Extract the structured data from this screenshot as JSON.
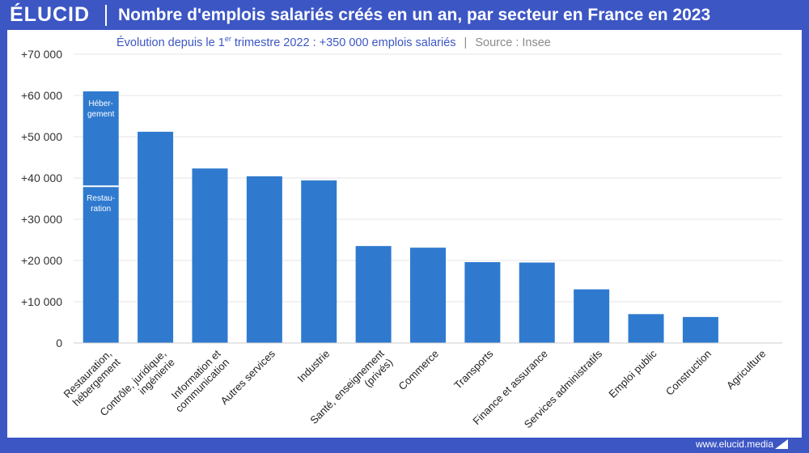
{
  "header": {
    "logo": "ÉLUCID",
    "title": "Nombre d'emplois salariés créés en un an, par secteur en France en 2023"
  },
  "subtitle": {
    "main_pre": "Évolution depuis le 1",
    "main_sup": "er",
    "main_post": " trimestre 2022 : +350 000 emplois salariés",
    "separator": "|",
    "source": "Source : Insee"
  },
  "footer": {
    "url": "www.elucid.media"
  },
  "colors": {
    "brand": "#3c56c4",
    "bar": "#2f7acf",
    "grid": "#e6e6e6"
  },
  "chart_data": {
    "type": "bar",
    "ylim": [
      0,
      70000
    ],
    "ticks": [
      {
        "value": 0,
        "label": "0"
      },
      {
        "value": 10000,
        "label": "+10 000"
      },
      {
        "value": 20000,
        "label": "+20 000"
      },
      {
        "value": 30000,
        "label": "+30 000"
      },
      {
        "value": 40000,
        "label": "+40 000"
      },
      {
        "value": 50000,
        "label": "+50 000"
      },
      {
        "value": 60000,
        "label": "+60 000"
      },
      {
        "value": 70000,
        "label": "+70 000"
      }
    ],
    "grid": true,
    "categories": [
      {
        "lines": [
          "Restauration,",
          "hébergement"
        ],
        "value": 61000,
        "segments": [
          {
            "label_lines": [
              "Restau-",
              "ration"
            ],
            "value": 38000
          },
          {
            "label_lines": [
              "Héber-",
              "gement"
            ],
            "value": 23000
          }
        ]
      },
      {
        "lines": [
          "Contrôle, juridique,",
          "ingénierie"
        ],
        "value": 51200
      },
      {
        "lines": [
          "Information et",
          "communication"
        ],
        "value": 42300
      },
      {
        "lines": [
          "Autres services"
        ],
        "value": 40400
      },
      {
        "lines": [
          "Industrie"
        ],
        "value": 39400
      },
      {
        "lines": [
          "Santé, enseignement",
          "(privés)"
        ],
        "value": 23500
      },
      {
        "lines": [
          "Commerce"
        ],
        "value": 23100
      },
      {
        "lines": [
          "Transports"
        ],
        "value": 19600
      },
      {
        "lines": [
          "Finance et assurance"
        ],
        "value": 19500
      },
      {
        "lines": [
          "Services administratifs"
        ],
        "value": 13000
      },
      {
        "lines": [
          "Emploi public"
        ],
        "value": 7000
      },
      {
        "lines": [
          "Construction"
        ],
        "value": 6300
      },
      {
        "lines": [
          "Agriculture"
        ],
        "value": 0
      }
    ]
  }
}
